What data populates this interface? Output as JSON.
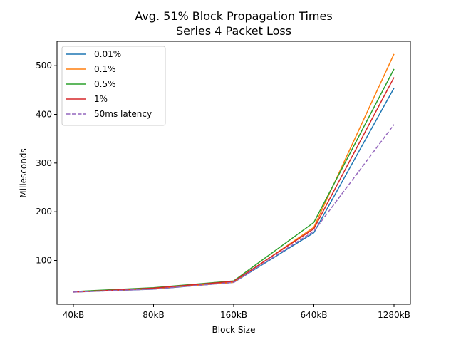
{
  "chart_data": {
    "type": "line",
    "title": "Avg. 51% Block Propagation Times",
    "subtitle": "Series 4 Packet Loss",
    "xlabel": "Block Size",
    "ylabel": "Millesconds",
    "categories": [
      "40kB",
      "80kB",
      "160kB",
      "640kB",
      "1280kB"
    ],
    "ylim": [
      10,
      550
    ],
    "yticks": [
      100,
      200,
      300,
      400,
      500
    ],
    "grid": false,
    "legend_position": "top-left",
    "series": [
      {
        "name": "0.01%",
        "color": "#1f77b4",
        "dash": "solid",
        "values": [
          35,
          41,
          55,
          157,
          454
        ]
      },
      {
        "name": "0.1%",
        "color": "#ff7f0e",
        "dash": "solid",
        "values": [
          35,
          42,
          55,
          168,
          524
        ]
      },
      {
        "name": "0.5%",
        "color": "#2ca02c",
        "dash": "solid",
        "values": [
          36,
          44,
          58,
          178,
          493
        ]
      },
      {
        "name": "1%",
        "color": "#d62728",
        "dash": "solid",
        "values": [
          35,
          43,
          57,
          165,
          476
        ]
      },
      {
        "name": "50ms latency",
        "color": "#9467bd",
        "dash": "dashed",
        "values": [
          35,
          41,
          55,
          160,
          379
        ]
      }
    ]
  }
}
